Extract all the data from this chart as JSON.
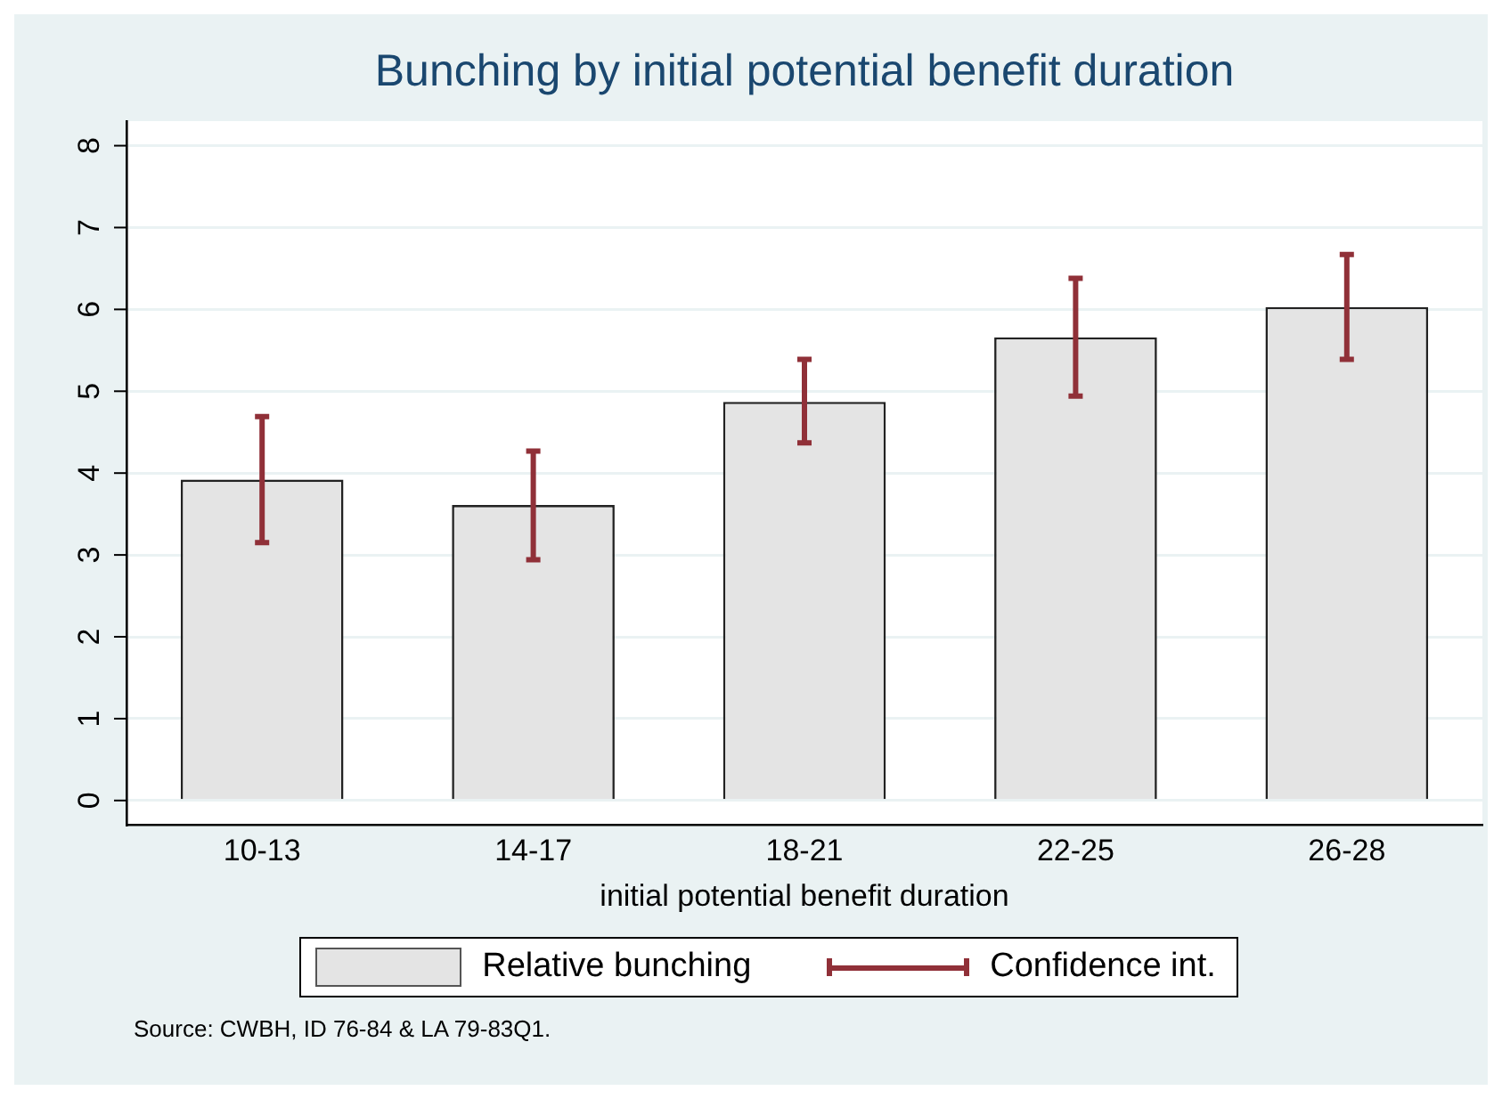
{
  "chart_data": {
    "type": "bar",
    "title": "Bunching by initial potential benefit duration",
    "xlabel": "initial potential benefit duration",
    "categories": [
      "10-13",
      "14-17",
      "18-21",
      "22-25",
      "26-28"
    ],
    "series": [
      {
        "name": "Relative bunching",
        "color": "#e4e4e4",
        "values": [
          3.92,
          3.61,
          4.87,
          5.66,
          6.03
        ],
        "errors": [
          [
            3.15,
            4.69
          ],
          [
            2.94,
            4.27
          ],
          [
            4.37,
            5.39
          ],
          [
            4.94,
            6.38
          ],
          [
            5.39,
            6.67
          ]
        ]
      }
    ],
    "ylim": [
      -0.3,
      8.3
    ],
    "yticks": [
      0,
      1,
      2,
      3,
      4,
      5,
      6,
      7,
      8
    ],
    "grid": "y",
    "legend": "bottom",
    "annotations": [
      "Confidence int.",
      "Source: CWBH, ID 76-84 & LA 79-83Q1."
    ]
  }
}
